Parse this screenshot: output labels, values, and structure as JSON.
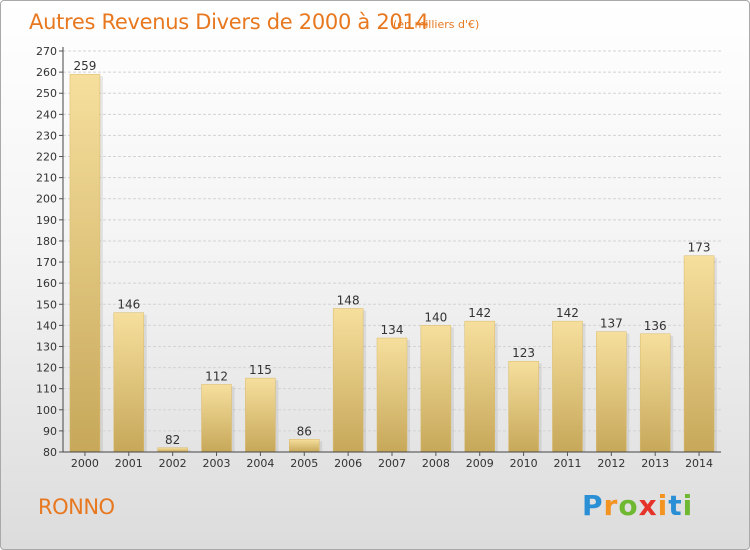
{
  "header": {
    "title": "Autres Revenus Divers de 2000 à 2014",
    "subtitle": "(en milliers d'€)"
  },
  "commune": "RONNO",
  "brand": {
    "letters": [
      "P",
      "r",
      "o",
      "x",
      "i",
      "t",
      "i"
    ],
    "colors": [
      "#2b8fd6",
      "#f39322",
      "#6fb832",
      "#e6332a",
      "#f39322",
      "#2b8fd6",
      "#6fb832"
    ]
  },
  "chart_data": {
    "type": "bar",
    "categories": [
      "2000",
      "2001",
      "2002",
      "2003",
      "2004",
      "2005",
      "2006",
      "2007",
      "2008",
      "2009",
      "2010",
      "2011",
      "2012",
      "2013",
      "2014"
    ],
    "values": [
      259,
      146,
      82,
      112,
      115,
      86,
      148,
      134,
      140,
      142,
      123,
      142,
      137,
      136,
      173
    ],
    "ylim": [
      80,
      270
    ],
    "ytick_step": 10,
    "grid": true,
    "bar_color": "#e9cd85",
    "grid_color": "#d4d4d4"
  }
}
